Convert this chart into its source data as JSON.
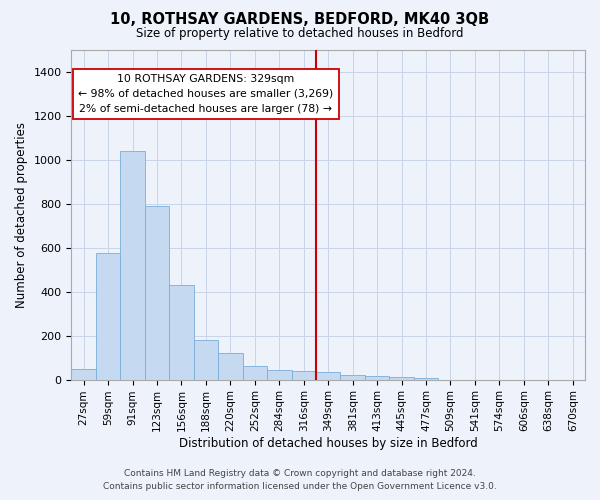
{
  "title": "10, ROTHSAY GARDENS, BEDFORD, MK40 3QB",
  "subtitle": "Size of property relative to detached houses in Bedford",
  "xlabel": "Distribution of detached houses by size in Bedford",
  "ylabel": "Number of detached properties",
  "annotation_title": "10 ROTHSAY GARDENS: 329sqm",
  "annotation_line1": "← 98% of detached houses are smaller (3,269)",
  "annotation_line2": "2% of semi-detached houses are larger (78) →",
  "bar_color": "#c5daf0",
  "bar_edge_color": "#7aaedb",
  "vline_color": "#cc0000",
  "background_color": "#edf2fb",
  "grid_color": "#c8d4e8",
  "categories": [
    "27sqm",
    "59sqm",
    "91sqm",
    "123sqm",
    "156sqm",
    "188sqm",
    "220sqm",
    "252sqm",
    "284sqm",
    "316sqm",
    "349sqm",
    "381sqm",
    "413sqm",
    "445sqm",
    "477sqm",
    "509sqm",
    "541sqm",
    "574sqm",
    "606sqm",
    "638sqm",
    "670sqm"
  ],
  "values": [
    50,
    575,
    1040,
    790,
    430,
    180,
    120,
    60,
    45,
    40,
    35,
    20,
    15,
    10,
    5,
    0,
    0,
    0,
    0,
    0,
    0
  ],
  "ylim": [
    0,
    1500
  ],
  "yticks": [
    0,
    200,
    400,
    600,
    800,
    1000,
    1200,
    1400
  ],
  "vline_x": 9.5,
  "footnote1": "Contains HM Land Registry data © Crown copyright and database right 2024.",
  "footnote2": "Contains public sector information licensed under the Open Government Licence v3.0."
}
